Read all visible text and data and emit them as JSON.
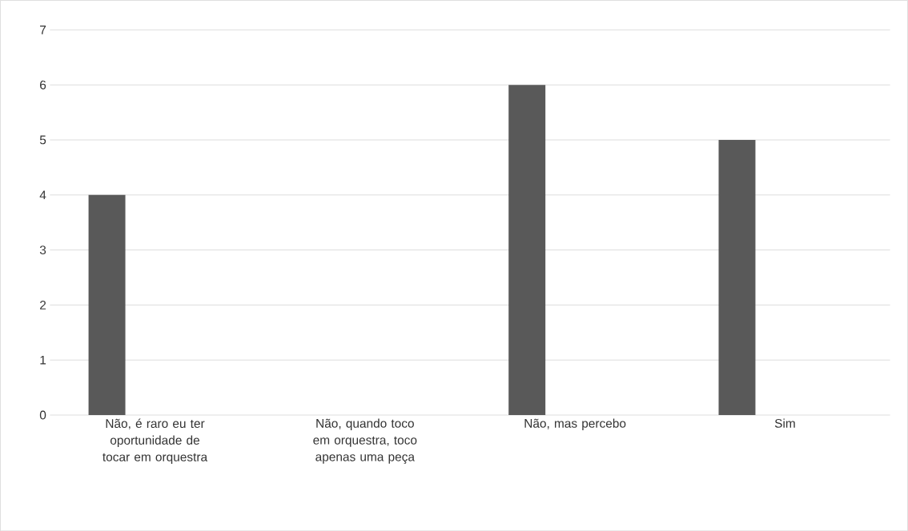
{
  "chart_data": {
    "type": "bar",
    "categories": [
      "Não, é raro eu ter oportunidade de tocar em orquestra",
      "Não, quando toco em orquestra, toco apenas uma peça",
      "Não, mas percebo",
      "Sim"
    ],
    "values": [
      4,
      0,
      6,
      5
    ],
    "color": "#595959",
    "ylim": [
      0,
      7
    ],
    "yticks": [
      0,
      1,
      2,
      3,
      4,
      5,
      6,
      7
    ],
    "grid": "y"
  }
}
